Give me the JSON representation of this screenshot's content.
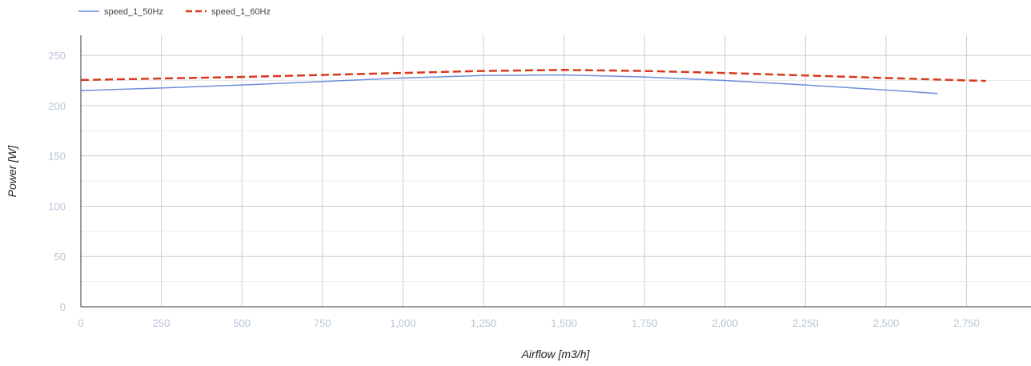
{
  "chart_data": {
    "type": "line",
    "title": "",
    "xlabel": "Airflow [m3/h]",
    "ylabel": "Power [W]",
    "xlim": [
      0,
      2950
    ],
    "ylim": [
      0,
      270
    ],
    "x_ticks": [
      "0",
      "250",
      "500",
      "750",
      "1,000",
      "1,250",
      "1,500",
      "1,750",
      "2,000",
      "2,250",
      "2,500",
      "2,750"
    ],
    "y_ticks": [
      "0",
      "50",
      "100",
      "150",
      "200",
      "250"
    ],
    "grid": true,
    "legend_position": "top-left",
    "series": [
      {
        "name": "speed_1_50Hz",
        "color": "#6d8fdb",
        "style": "solid",
        "x": [
          0,
          250,
          500,
          750,
          1000,
          1250,
          1500,
          1750,
          2000,
          2250,
          2500,
          2660
        ],
        "y": [
          215,
          217.5,
          220.5,
          224,
          227.5,
          230,
          230.5,
          228.5,
          225,
          220.5,
          215.5,
          212
        ]
      },
      {
        "name": "speed_1_60Hz",
        "color": "#d83a1e",
        "style": "dashed",
        "x": [
          0,
          250,
          500,
          750,
          1000,
          1250,
          1500,
          1750,
          2000,
          2250,
          2500,
          2810
        ],
        "y": [
          225.5,
          227,
          228.5,
          230.5,
          232.5,
          234.5,
          235.5,
          234.5,
          232.5,
          230,
          227.5,
          224.5
        ]
      }
    ]
  }
}
